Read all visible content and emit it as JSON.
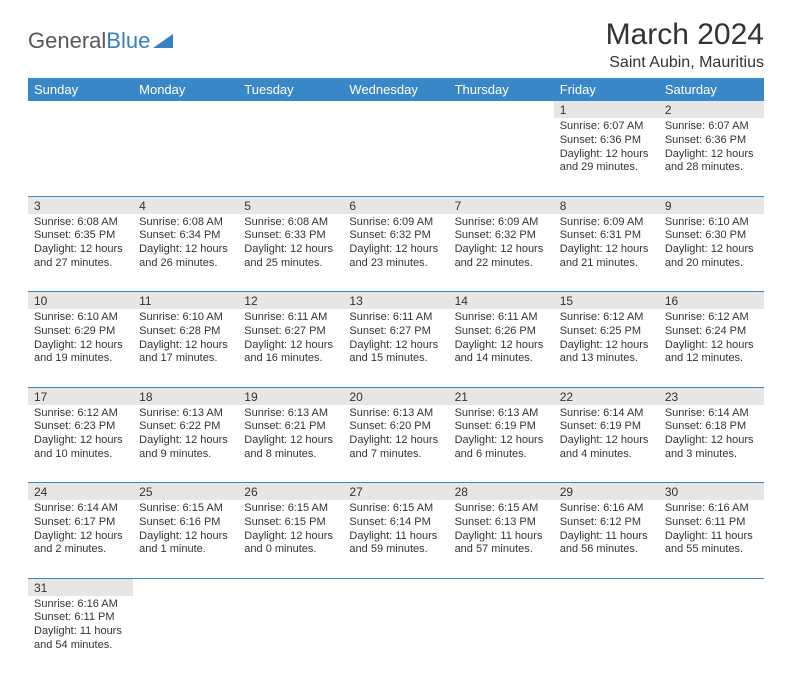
{
  "logo": {
    "general": "General",
    "blue": "Blue"
  },
  "title": "March 2024",
  "location": "Saint Aubin, Mauritius",
  "colors": {
    "header_bg": "#3a87c8",
    "header_text": "#ffffff",
    "daynum_bg": "#e6e6e6",
    "border": "#3a87c8",
    "text": "#333333",
    "logo_gray": "#585858",
    "logo_blue": "#3a7fbf",
    "page_bg": "#ffffff"
  },
  "weekdays": [
    "Sunday",
    "Monday",
    "Tuesday",
    "Wednesday",
    "Thursday",
    "Friday",
    "Saturday"
  ],
  "weeks": [
    {
      "nums": [
        "",
        "",
        "",
        "",
        "",
        "1",
        "2"
      ],
      "cells": [
        null,
        null,
        null,
        null,
        null,
        {
          "sunrise": "6:07 AM",
          "sunset": "6:36 PM",
          "daylight": "12 hours and 29 minutes."
        },
        {
          "sunrise": "6:07 AM",
          "sunset": "6:36 PM",
          "daylight": "12 hours and 28 minutes."
        }
      ]
    },
    {
      "nums": [
        "3",
        "4",
        "5",
        "6",
        "7",
        "8",
        "9"
      ],
      "cells": [
        {
          "sunrise": "6:08 AM",
          "sunset": "6:35 PM",
          "daylight": "12 hours and 27 minutes."
        },
        {
          "sunrise": "6:08 AM",
          "sunset": "6:34 PM",
          "daylight": "12 hours and 26 minutes."
        },
        {
          "sunrise": "6:08 AM",
          "sunset": "6:33 PM",
          "daylight": "12 hours and 25 minutes."
        },
        {
          "sunrise": "6:09 AM",
          "sunset": "6:32 PM",
          "daylight": "12 hours and 23 minutes."
        },
        {
          "sunrise": "6:09 AM",
          "sunset": "6:32 PM",
          "daylight": "12 hours and 22 minutes."
        },
        {
          "sunrise": "6:09 AM",
          "sunset": "6:31 PM",
          "daylight": "12 hours and 21 minutes."
        },
        {
          "sunrise": "6:10 AM",
          "sunset": "6:30 PM",
          "daylight": "12 hours and 20 minutes."
        }
      ]
    },
    {
      "nums": [
        "10",
        "11",
        "12",
        "13",
        "14",
        "15",
        "16"
      ],
      "cells": [
        {
          "sunrise": "6:10 AM",
          "sunset": "6:29 PM",
          "daylight": "12 hours and 19 minutes."
        },
        {
          "sunrise": "6:10 AM",
          "sunset": "6:28 PM",
          "daylight": "12 hours and 17 minutes."
        },
        {
          "sunrise": "6:11 AM",
          "sunset": "6:27 PM",
          "daylight": "12 hours and 16 minutes."
        },
        {
          "sunrise": "6:11 AM",
          "sunset": "6:27 PM",
          "daylight": "12 hours and 15 minutes."
        },
        {
          "sunrise": "6:11 AM",
          "sunset": "6:26 PM",
          "daylight": "12 hours and 14 minutes."
        },
        {
          "sunrise": "6:12 AM",
          "sunset": "6:25 PM",
          "daylight": "12 hours and 13 minutes."
        },
        {
          "sunrise": "6:12 AM",
          "sunset": "6:24 PM",
          "daylight": "12 hours and 12 minutes."
        }
      ]
    },
    {
      "nums": [
        "17",
        "18",
        "19",
        "20",
        "21",
        "22",
        "23"
      ],
      "cells": [
        {
          "sunrise": "6:12 AM",
          "sunset": "6:23 PM",
          "daylight": "12 hours and 10 minutes."
        },
        {
          "sunrise": "6:13 AM",
          "sunset": "6:22 PM",
          "daylight": "12 hours and 9 minutes."
        },
        {
          "sunrise": "6:13 AM",
          "sunset": "6:21 PM",
          "daylight": "12 hours and 8 minutes."
        },
        {
          "sunrise": "6:13 AM",
          "sunset": "6:20 PM",
          "daylight": "12 hours and 7 minutes."
        },
        {
          "sunrise": "6:13 AM",
          "sunset": "6:19 PM",
          "daylight": "12 hours and 6 minutes."
        },
        {
          "sunrise": "6:14 AM",
          "sunset": "6:19 PM",
          "daylight": "12 hours and 4 minutes."
        },
        {
          "sunrise": "6:14 AM",
          "sunset": "6:18 PM",
          "daylight": "12 hours and 3 minutes."
        }
      ]
    },
    {
      "nums": [
        "24",
        "25",
        "26",
        "27",
        "28",
        "29",
        "30"
      ],
      "cells": [
        {
          "sunrise": "6:14 AM",
          "sunset": "6:17 PM",
          "daylight": "12 hours and 2 minutes."
        },
        {
          "sunrise": "6:15 AM",
          "sunset": "6:16 PM",
          "daylight": "12 hours and 1 minute."
        },
        {
          "sunrise": "6:15 AM",
          "sunset": "6:15 PM",
          "daylight": "12 hours and 0 minutes."
        },
        {
          "sunrise": "6:15 AM",
          "sunset": "6:14 PM",
          "daylight": "11 hours and 59 minutes."
        },
        {
          "sunrise": "6:15 AM",
          "sunset": "6:13 PM",
          "daylight": "11 hours and 57 minutes."
        },
        {
          "sunrise": "6:16 AM",
          "sunset": "6:12 PM",
          "daylight": "11 hours and 56 minutes."
        },
        {
          "sunrise": "6:16 AM",
          "sunset": "6:11 PM",
          "daylight": "11 hours and 55 minutes."
        }
      ]
    },
    {
      "nums": [
        "31",
        "",
        "",
        "",
        "",
        "",
        ""
      ],
      "cells": [
        {
          "sunrise": "6:16 AM",
          "sunset": "6:11 PM",
          "daylight": "11 hours and 54 minutes."
        },
        null,
        null,
        null,
        null,
        null,
        null
      ]
    }
  ],
  "labels": {
    "sunrise": "Sunrise:",
    "sunset": "Sunset:",
    "daylight": "Daylight:"
  }
}
